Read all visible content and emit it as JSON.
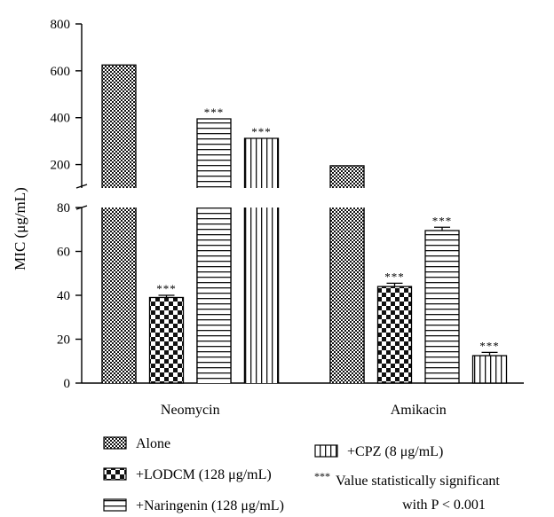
{
  "chart_data": {
    "type": "bar",
    "ylabel": "MIC (μg/mL)",
    "y_axis_break": true,
    "ylim_lower": [
      0,
      80
    ],
    "ylim_upper": [
      100,
      800
    ],
    "yticks_lower": [
      0,
      20,
      40,
      60,
      80
    ],
    "yticks_upper": [
      200,
      400,
      600,
      800
    ],
    "categories": [
      "Neomycin",
      "Amikacin"
    ],
    "series": [
      {
        "name": "Alone",
        "pattern": "dense-checker",
        "values": [
          625,
          195
        ],
        "errors": [
          0,
          0
        ],
        "significant": [
          false,
          false
        ]
      },
      {
        "name": "+LODCM (128 μg/mL)",
        "pattern": "checker",
        "values": [
          39,
          44
        ],
        "errors": [
          1,
          1.5
        ],
        "significant": [
          true,
          true
        ]
      },
      {
        "name": "+Naringenin (128 μg/mL)",
        "pattern": "horizontal-lines",
        "values": [
          395,
          69.5
        ],
        "errors": [
          0,
          1.5
        ],
        "significant": [
          true,
          true
        ]
      },
      {
        "name": "+CPZ (8 μg/mL)",
        "pattern": "vertical-lines",
        "values": [
          312,
          12.5
        ],
        "errors": [
          0,
          1.5
        ],
        "significant": [
          true,
          true
        ]
      }
    ],
    "significance_marker": "***",
    "legend": {
      "position": "bottom",
      "note_marker": "***",
      "note_line1": "Value statistically significant",
      "note_line2": "with P < 0.001"
    }
  }
}
